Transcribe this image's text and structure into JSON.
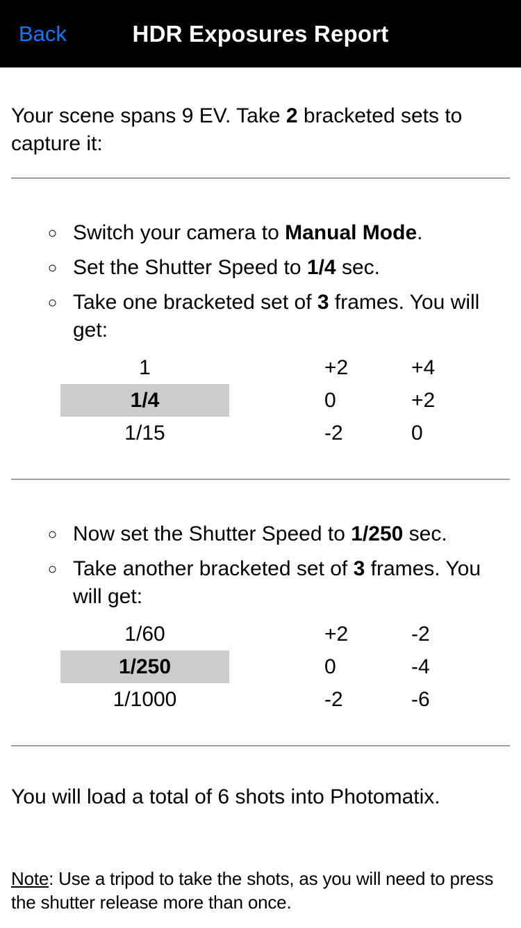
{
  "colors": {
    "header_bg": "#000000",
    "accent_blue": "#0a7aff",
    "highlight_bg": "#cccccc",
    "divider_gray": "#9e9e9e"
  },
  "header": {
    "back_label": "Back",
    "title": "HDR Exposures Report"
  },
  "intro": {
    "pre": "Your scene spans 9 EV. Take ",
    "bold": "2",
    "post": " bracketed sets to capture it:"
  },
  "set1": {
    "bullets": [
      {
        "pre": "Switch your camera to ",
        "bold": "Manual Mode",
        "post": "."
      },
      {
        "pre": "Set the Shutter Speed to ",
        "bold": "1/4",
        "post": " sec."
      },
      {
        "pre": "Take one bracketed set of ",
        "bold": "3",
        "post": " frames. You will get:"
      }
    ],
    "table": {
      "highlighted_speed": "1/4",
      "rows": [
        {
          "speed": "1",
          "ev_step": "+2",
          "ev_total": "+4"
        },
        {
          "speed": "1/4",
          "ev_step": "0",
          "ev_total": "+2"
        },
        {
          "speed": "1/15",
          "ev_step": "-2",
          "ev_total": "0"
        }
      ]
    }
  },
  "set2": {
    "bullets": [
      {
        "pre": "Now set the Shutter Speed to ",
        "bold": "1/250",
        "post": " sec."
      },
      {
        "pre": "Take another bracketed set of ",
        "bold": "3",
        "post": " frames. You will get:"
      }
    ],
    "table": {
      "highlighted_speed": "1/250",
      "rows": [
        {
          "speed": "1/60",
          "ev_step": "+2",
          "ev_total": "-2"
        },
        {
          "speed": "1/250",
          "ev_step": "0",
          "ev_total": "-4"
        },
        {
          "speed": "1/1000",
          "ev_step": "-2",
          "ev_total": "-6"
        }
      ]
    }
  },
  "summary": {
    "text": "You will load a total of 6 shots into Photomatix."
  },
  "note": {
    "label": "Note",
    "rest": ": Use a tripod to take the shots, as you will need to press the shutter release more than once."
  }
}
